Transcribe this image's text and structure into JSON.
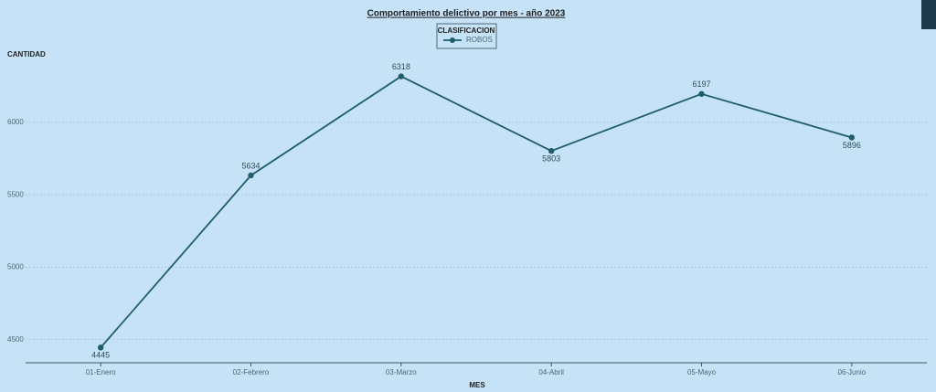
{
  "chart_data": {
    "type": "line",
    "title": "Comportamiento delictivo por mes - año 2023",
    "x_label": "MES",
    "y_label": "CANTIDAD",
    "legend_title": "CLASIFICACION",
    "categories": [
      "01-Enero",
      "02-Febrero",
      "03-Marzo",
      "04-Abril",
      "05-Mayo",
      "06-Junio"
    ],
    "series": [
      {
        "name": "ROBOS",
        "color": "#1e5d6a",
        "values": [
          4445,
          5634,
          6318,
          5803,
          6197,
          5896
        ]
      }
    ],
    "ylim": [
      4340,
      6530
    ],
    "yticks": [
      4500,
      5000,
      5500,
      6000
    ],
    "grid": true
  }
}
